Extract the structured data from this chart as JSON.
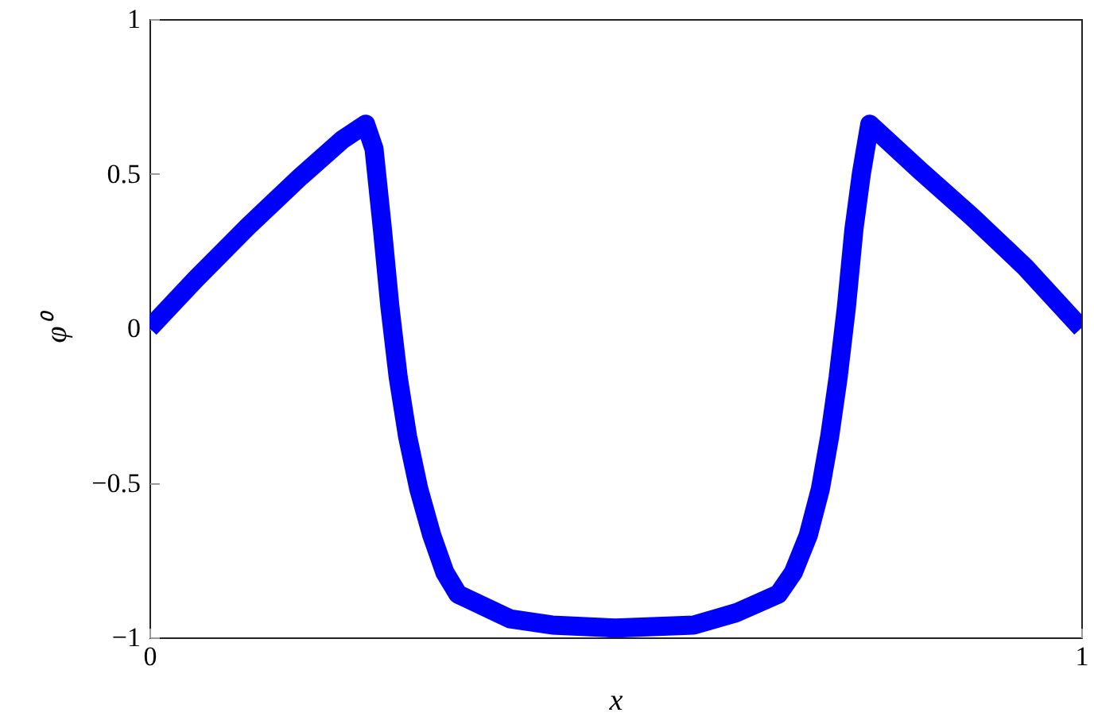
{
  "chart_data": {
    "type": "line",
    "xlabel": "x",
    "ylabel": "φ⁰",
    "x": [
      0,
      0.05,
      0.106,
      0.162,
      0.207,
      0.232,
      0.241,
      0.25,
      0.258,
      0.267,
      0.277,
      0.289,
      0.303,
      0.317,
      0.331,
      0.387,
      0.432,
      0.5,
      0.584,
      0.63,
      0.675,
      0.691,
      0.707,
      0.72,
      0.73,
      0.739,
      0.748,
      0.756,
      0.764,
      0.773,
      0.827,
      0.883,
      0.939,
      1
    ],
    "series": [
      {
        "color": "#0000ff",
        "values": [
          0,
          0.16,
          0.33,
          0.49,
          0.61,
          0.66,
          0.58,
          0.32,
          0.07,
          -0.16,
          -0.35,
          -0.52,
          -0.67,
          -0.79,
          -0.86,
          -0.94,
          -0.96,
          -0.97,
          -0.96,
          -0.92,
          -0.86,
          -0.79,
          -0.67,
          -0.52,
          -0.35,
          -0.16,
          0.07,
          0.32,
          0.5,
          0.66,
          0.51,
          0.36,
          0.2,
          0
        ]
      }
    ],
    "xlim": [
      0,
      1
    ],
    "xticks": [
      0,
      1
    ],
    "ylim": [
      -1,
      1
    ],
    "yticks": [
      -1,
      -0.5,
      0,
      0.5,
      1
    ],
    "grid": false,
    "line_style": "solid"
  }
}
